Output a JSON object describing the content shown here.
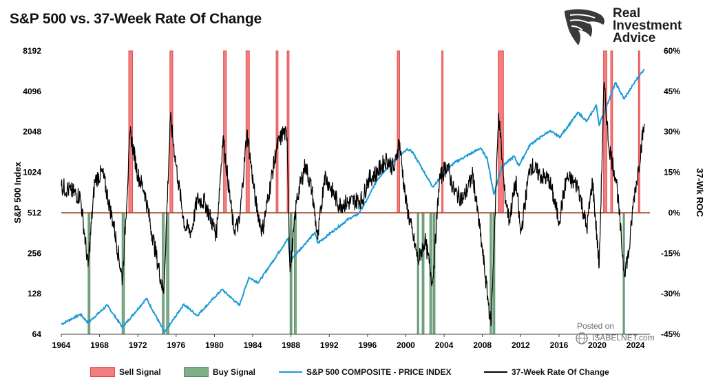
{
  "title": "S&P 500 vs. 37-Week Rate Of Change",
  "brand": {
    "line1": "Real",
    "line2": "Investment",
    "line3": "Advice"
  },
  "watermark": {
    "posted": "Posted on",
    "site": "ISABELNET.com"
  },
  "colors": {
    "sell": "#f08080",
    "sell_edge": "#e84c4c",
    "buy": "#7fae89",
    "buy_edge": "#5b8f67",
    "spx": "#1a9ad6",
    "roc": "#000000",
    "zero_line": "#a0522d"
  },
  "chart_data": {
    "type": "line",
    "title": "S&P 500 vs. 37-Week Rate Of Change",
    "ylabel_left": "S&P 500 Index",
    "ylabel_right": "37-Wk ROC",
    "xlim": [
      1964,
      2025.5
    ],
    "ylim_left": [
      64,
      8192
    ],
    "ylim_right": [
      -45,
      60
    ],
    "left_ticks": [
      "8192",
      "4096",
      "2048",
      "1024",
      "512",
      "256",
      "128",
      "64"
    ],
    "left_tick_values": [
      8192,
      4096,
      2048,
      1024,
      512,
      256,
      128,
      64
    ],
    "right_ticks": [
      "60%",
      "45%",
      "30%",
      "15%",
      "0%",
      "-15%",
      "-30%",
      "-45%"
    ],
    "right_tick_values": [
      60,
      45,
      30,
      15,
      0,
      -15,
      -30,
      -45
    ],
    "x_ticks": [
      "1964",
      "1968",
      "1972",
      "1976",
      "1980",
      "1984",
      "1988",
      "1992",
      "1996",
      "2000",
      "2004",
      "2008",
      "2012",
      "2016",
      "2020",
      "2024"
    ],
    "x_tick_values": [
      1964,
      1968,
      1972,
      1976,
      1980,
      1984,
      1988,
      1992,
      1996,
      2000,
      2004,
      2008,
      2012,
      2016,
      2020,
      2024
    ],
    "sell_signals": [
      [
        1971.05,
        1971.45
      ],
      [
        1975.35,
        1975.65
      ],
      [
        1980.95,
        1981.25
      ],
      [
        1983.3,
        1983.65
      ],
      [
        1986.45,
        1986.65
      ],
      [
        1987.6,
        1987.8
      ],
      [
        1999.1,
        1999.35
      ],
      [
        2003.75,
        2003.85
      ],
      [
        2009.65,
        2010.2
      ],
      [
        2020.65,
        2021.0
      ],
      [
        2021.4,
        2021.6
      ],
      [
        2024.3,
        2024.45
      ]
    ],
    "buy_signals": [
      [
        1966.8,
        1967.0
      ],
      [
        1970.35,
        1970.6
      ],
      [
        1974.55,
        1974.75
      ],
      [
        1975.0,
        1975.25
      ],
      [
        1987.9,
        1988.1
      ],
      [
        1988.35,
        1988.55
      ],
      [
        2001.2,
        2001.35
      ],
      [
        2001.7,
        2001.9
      ],
      [
        2002.5,
        2002.7
      ],
      [
        2002.85,
        2003.05
      ],
      [
        2008.8,
        2008.95
      ],
      [
        2009.1,
        2009.3
      ],
      [
        2022.7,
        2022.85
      ]
    ],
    "series": [
      {
        "name": "S&P 500 COMPOSITE - PRICE INDEX",
        "axis": "left",
        "x": [
          1964,
          1966,
          1966.8,
          1968.8,
          1970.4,
          1972.9,
          1974.8,
          1976.8,
          1978.2,
          1980.8,
          1982.6,
          1983.6,
          1984.6,
          1987.7,
          1987.9,
          1990.5,
          1990.8,
          1994,
          1995,
          1996,
          1997,
          1998,
          1999,
          2000.2,
          2000.7,
          2002.8,
          2003.3,
          2005,
          2007.8,
          2008.5,
          2009.2,
          2010,
          2011.3,
          2011.8,
          2013,
          2015,
          2016.1,
          2018,
          2018.9,
          2019.9,
          2020.2,
          2021.9,
          2022.8,
          2023.5,
          2024,
          2024.9
        ],
        "y": [
          76,
          90,
          78,
          105,
          72,
          118,
          66,
          107,
          88,
          138,
          105,
          169,
          155,
          330,
          225,
          365,
          305,
          460,
          500,
          650,
          900,
          1100,
          1300,
          1520,
          1450,
          800,
          880,
          1200,
          1550,
          1300,
          700,
          1120,
          1350,
          1150,
          1650,
          2080,
          1880,
          2850,
          2450,
          3230,
          2300,
          4750,
          3600,
          4300,
          4900,
          6000
        ]
      },
      {
        "name": "37-Week Rate Of Change",
        "axis": "right",
        "x": [
          1964,
          1965,
          1966,
          1966.8,
          1967.5,
          1968.3,
          1968.9,
          1969.5,
          1970.4,
          1971.2,
          1972,
          1972.7,
          1973.5,
          1974.7,
          1975.4,
          1976.2,
          1976.9,
          1977.6,
          1978.2,
          1979,
          1980.2,
          1980.9,
          1982,
          1982.6,
          1983.4,
          1984.3,
          1985,
          1986.5,
          1987.2,
          1987.6,
          1987.9,
          1988.6,
          1989.5,
          1990.2,
          1990.8,
          1991.5,
          1993,
          1995.5,
          1996,
          1997,
          1998,
          1998.8,
          1999.3,
          2000,
          2000.7,
          2001.3,
          2002,
          2002.8,
          2003.5,
          2004.3,
          2005,
          2006,
          2007,
          2008,
          2008.9,
          2009.7,
          2010.3,
          2010.8,
          2011.5,
          2012,
          2013,
          2014,
          2015,
          2016,
          2016.8,
          2018,
          2018.9,
          2019.5,
          2020.2,
          2020.7,
          2021.2,
          2022,
          2022.8,
          2023.3,
          2023.8,
          2024.2,
          2024.9
        ],
        "y": [
          10,
          8,
          6,
          -20,
          12,
          15,
          5,
          -5,
          -25,
          30,
          14,
          8,
          -8,
          -30,
          35,
          12,
          -5,
          -7,
          5,
          4,
          -8,
          28,
          -6,
          -4,
          30,
          4,
          -7,
          24,
          30,
          28,
          -22,
          5,
          18,
          8,
          -10,
          14,
          3,
          5,
          12,
          15,
          20,
          16,
          27,
          4,
          -8,
          -18,
          -10,
          -26,
          12,
          18,
          8,
          5,
          14,
          -14,
          -42,
          37,
          8,
          -3,
          12,
          -8,
          18,
          14,
          12,
          -3,
          13,
          10,
          -6,
          12,
          -20,
          48,
          25,
          12,
          -22,
          -15,
          5,
          14,
          33
        ]
      }
    ]
  },
  "legend": [
    {
      "label": "Sell Signal",
      "kind": "box",
      "color": "#f08080"
    },
    {
      "label": "Buy Signal",
      "kind": "box",
      "color": "#7fae89"
    },
    {
      "label": "S&P 500 COMPOSITE - PRICE INDEX",
      "kind": "line",
      "color": "#1a9ad6"
    },
    {
      "label": "37-Week Rate Of Change",
      "kind": "line",
      "color": "#000000"
    }
  ]
}
